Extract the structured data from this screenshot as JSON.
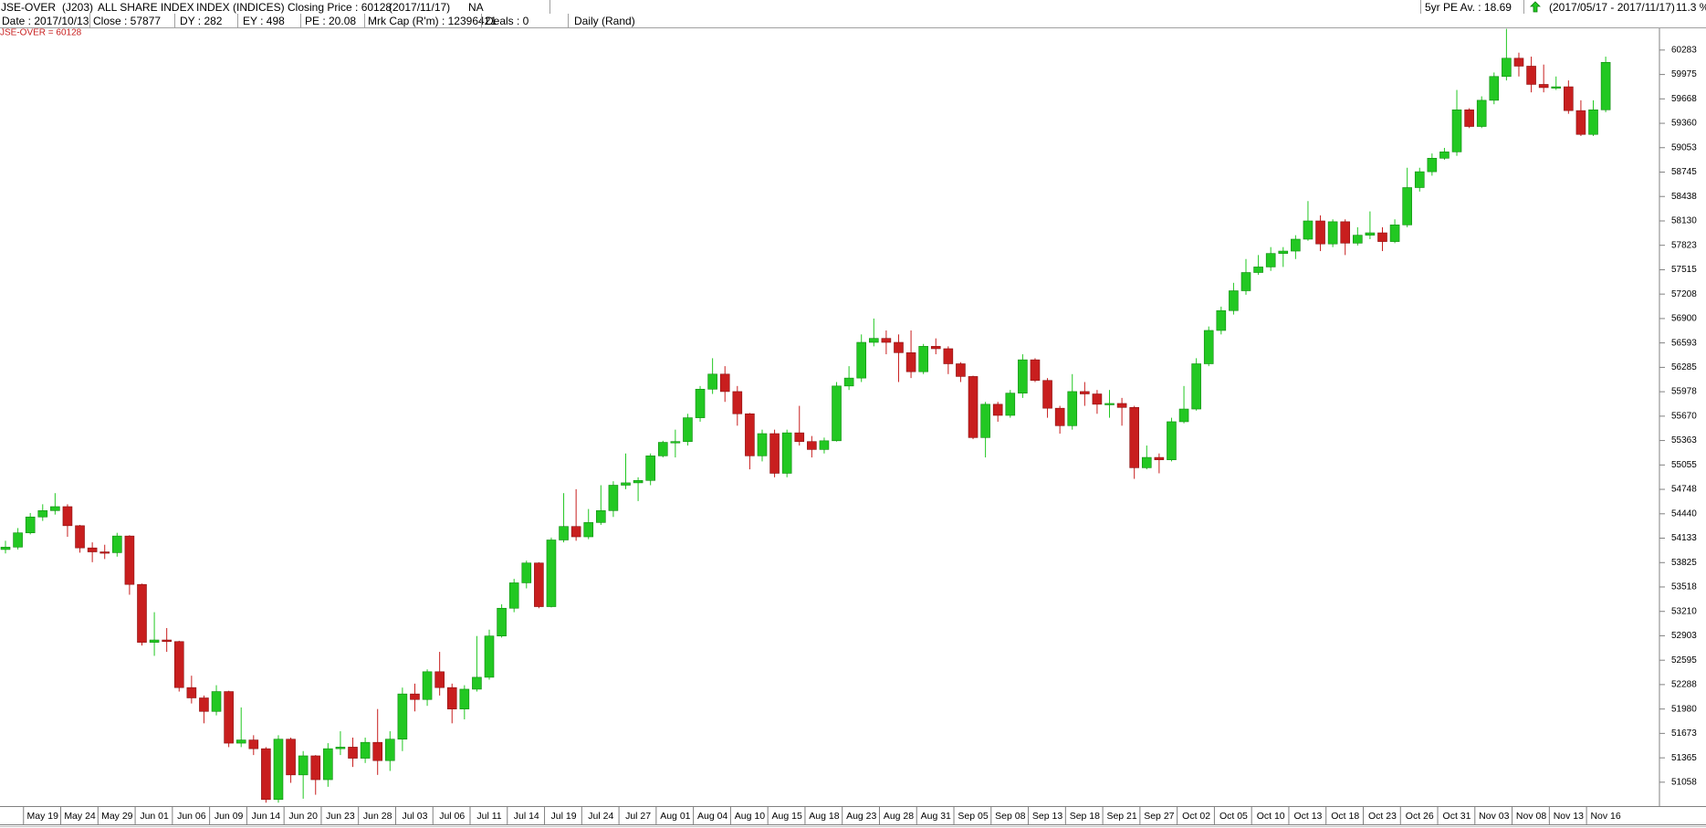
{
  "header": {
    "row1": [
      "JSE-OVER",
      "(J203)",
      "ALL SHARE INDEX",
      "INDEX (INDICES)",
      "Closing Price : 60128",
      "(2017/11/17)",
      "NA"
    ],
    "right": [
      "5yr PE Av. : 18.69",
      "(2017/05/17 - 2017/11/17)",
      "11.3 %"
    ],
    "row2": [
      "Date : 2017/10/13",
      "Close : 57877",
      "DY : 282",
      "EY : 498",
      "PE : 20.08",
      "Mrk Cap (R'm) : 12396421",
      "Deals : 0",
      "Daily (Rand)"
    ]
  },
  "chart_data": {
    "type": "candlestick",
    "annotation": "JSE-OVER = 60128",
    "up_color": "#22c822",
    "down_color": "#c81e1e",
    "categories": [
      null,
      null,
      null,
      "May 19",
      null,
      null,
      "May 24",
      null,
      null,
      "May 29",
      null,
      null,
      "Jun 01",
      null,
      null,
      "Jun 06",
      null,
      null,
      "Jun 09",
      null,
      null,
      "Jun 14",
      null,
      null,
      "Jun 20",
      null,
      null,
      "Jun 23",
      null,
      null,
      "Jun 28",
      null,
      null,
      "Jul 03",
      null,
      null,
      "Jul 06",
      null,
      null,
      "Jul 11",
      null,
      null,
      "Jul 14",
      null,
      null,
      "Jul 19",
      null,
      null,
      "Jul 24",
      null,
      null,
      "Jul 27",
      null,
      null,
      "Aug 01",
      null,
      null,
      "Aug 04",
      null,
      null,
      "Aug 10",
      null,
      null,
      "Aug 15",
      null,
      null,
      "Aug 18",
      null,
      null,
      "Aug 23",
      null,
      null,
      "Aug 28",
      null,
      null,
      "Aug 31",
      null,
      null,
      "Sep 05",
      null,
      null,
      "Sep 08",
      null,
      null,
      "Sep 13",
      null,
      null,
      "Sep 18",
      null,
      null,
      "Sep 21",
      null,
      null,
      "Sep 27",
      null,
      null,
      "Oct 02",
      null,
      null,
      "Oct 05",
      null,
      null,
      "Oct 10",
      null,
      null,
      "Oct 13",
      null,
      null,
      "Oct 18",
      null,
      null,
      "Oct 23",
      null,
      null,
      "Oct 26",
      null,
      null,
      "Oct 31",
      null,
      null,
      "Nov 03",
      null,
      null,
      "Nov 08",
      null,
      null,
      "Nov 13",
      null,
      null,
      "Nov 16"
    ],
    "open": [
      53990,
      54020,
      54200,
      54400,
      54480,
      54530,
      54290,
      54010,
      53960,
      53950,
      54160,
      53550,
      52820,
      52850,
      52830,
      52250,
      52120,
      51950,
      52200,
      51550,
      51590,
      51480,
      50840,
      51600,
      51150,
      51390,
      51090,
      51480,
      51500,
      51360,
      51560,
      51330,
      51600,
      52170,
      52100,
      52450,
      52250,
      51980,
      52230,
      52380,
      52900,
      53250,
      53570,
      53820,
      53270,
      54110,
      54280,
      54150,
      54330,
      54480,
      54800,
      54830,
      54860,
      55170,
      55340,
      55350,
      55650,
      56010,
      56200,
      55980,
      55700,
      55170,
      55450,
      54950,
      55460,
      55350,
      55250,
      55360,
      56050,
      56150,
      56600,
      56650,
      56600,
      56470,
      56230,
      56550,
      56520,
      56330,
      56170,
      55400,
      55820,
      55680,
      55960,
      56380,
      56120,
      55770,
      55550,
      55980,
      55950,
      55820,
      55830,
      55780,
      55020,
      55150,
      55120,
      55600,
      55760,
      56330,
      56750,
      57000,
      57250,
      57480,
      57550,
      57720,
      57750,
      57900,
      58130,
      57840,
      58120,
      57850,
      57950,
      57980,
      57870,
      58080,
      58550,
      58750,
      58920,
      59000,
      59530,
      59320,
      59650,
      59950,
      60180,
      60080,
      59850,
      59810,
      59820,
      59520,
      59220,
      59530
    ],
    "high": [
      54100,
      54260,
      54450,
      54560,
      54700,
      54560,
      54300,
      54080,
      54050,
      54200,
      54170,
      53560,
      53200,
      53000,
      52840,
      52400,
      52150,
      52280,
      52210,
      52000,
      51650,
      51500,
      51650,
      51620,
      51450,
      51400,
      51550,
      51700,
      51620,
      51620,
      51980,
      51700,
      52250,
      52300,
      52480,
      52700,
      52300,
      52280,
      52900,
      52980,
      53300,
      53620,
      53850,
      53830,
      54140,
      54700,
      54750,
      54500,
      54800,
      54850,
      55200,
      54900,
      55200,
      55360,
      55500,
      55700,
      56050,
      56400,
      56300,
      56050,
      55710,
      55500,
      55500,
      55500,
      55800,
      55420,
      55400,
      56100,
      56300,
      56700,
      56900,
      56750,
      56700,
      56750,
      56580,
      56650,
      56550,
      56350,
      56180,
      55850,
      55850,
      56000,
      56450,
      56400,
      56150,
      55800,
      56200,
      56100,
      56000,
      56000,
      55900,
      55800,
      55300,
      55200,
      55650,
      56050,
      56400,
      56800,
      57050,
      57350,
      57650,
      57700,
      57800,
      57800,
      57950,
      58380,
      58200,
      58150,
      58150,
      58050,
      58250,
      58050,
      58150,
      58800,
      58800,
      58980,
      59050,
      59780,
      59550,
      59700,
      60000,
      60550,
      60250,
      60200,
      60100,
      59950,
      59900,
      59650,
      59650,
      60200
    ],
    "low": [
      53940,
      53990,
      54180,
      54350,
      54430,
      54150,
      53950,
      53830,
      53870,
      53900,
      53420,
      52780,
      52650,
      52700,
      52200,
      52050,
      51800,
      51900,
      51500,
      51500,
      51400,
      50800,
      50800,
      51050,
      50850,
      50900,
      51000,
      51400,
      51250,
      51300,
      51150,
      51200,
      51450,
      51950,
      52020,
      52150,
      51800,
      51850,
      52200,
      52350,
      52880,
      53200,
      53500,
      53250,
      53260,
      54080,
      54100,
      54120,
      54300,
      54400,
      54750,
      54600,
      54800,
      55150,
      55150,
      55300,
      55600,
      55950,
      55850,
      55550,
      55000,
      55100,
      54900,
      54900,
      55300,
      55150,
      55200,
      55350,
      56000,
      56100,
      56550,
      56450,
      56100,
      56150,
      56200,
      56450,
      56200,
      56100,
      55380,
      55150,
      55600,
      55650,
      55900,
      56100,
      55650,
      55450,
      55500,
      55800,
      55700,
      55650,
      55550,
      54880,
      55000,
      54950,
      55100,
      55580,
      55740,
      56300,
      56700,
      56950,
      57200,
      57450,
      57500,
      57550,
      57650,
      57880,
      57750,
      57800,
      57700,
      57820,
      57900,
      57750,
      57850,
      58050,
      58500,
      58700,
      58900,
      58950,
      59300,
      59300,
      59600,
      59900,
      59950,
      59750,
      59750,
      59780,
      59480,
      59200,
      59200,
      59500
    ],
    "close": [
      54020,
      54200,
      54400,
      54480,
      54530,
      54290,
      54010,
      53960,
      53950,
      54160,
      53550,
      52820,
      52850,
      52830,
      52250,
      52120,
      51950,
      52200,
      51550,
      51590,
      51480,
      50840,
      51600,
      51150,
      51390,
      51090,
      51480,
      51500,
      51360,
      51560,
      51330,
      51600,
      52170,
      52100,
      52450,
      52250,
      51980,
      52230,
      52380,
      52900,
      53250,
      53570,
      53820,
      53270,
      54110,
      54280,
      54150,
      54330,
      54480,
      54800,
      54830,
      54860,
      55170,
      55340,
      55350,
      55650,
      56010,
      56200,
      55980,
      55700,
      55170,
      55450,
      54950,
      55460,
      55350,
      55250,
      55360,
      56050,
      56150,
      56600,
      56650,
      56600,
      56470,
      56230,
      56550,
      56520,
      56330,
      56170,
      55400,
      55820,
      55680,
      55960,
      56380,
      56120,
      55770,
      55550,
      55980,
      55950,
      55820,
      55830,
      55780,
      55020,
      55150,
      55120,
      55600,
      55760,
      56330,
      56750,
      57000,
      57250,
      57480,
      57550,
      57720,
      57750,
      57900,
      58130,
      57840,
      58120,
      57850,
      57950,
      57980,
      57870,
      58080,
      58550,
      58750,
      58920,
      59000,
      59530,
      59320,
      59650,
      59950,
      60180,
      60080,
      59850,
      59810,
      59820,
      59520,
      59220,
      59530,
      60128
    ],
    "ylim": [
      50757,
      60557
    ],
    "yticks": [
      60283,
      59975,
      59668,
      59360,
      59053,
      58745,
      58438,
      58130,
      57823,
      57515,
      57208,
      56900,
      56593,
      56285,
      55978,
      55670,
      55363,
      55055,
      54748,
      54440,
      54133,
      53825,
      53518,
      53210,
      52903,
      52595,
      52288,
      51980,
      51673,
      51365,
      51058
    ]
  }
}
